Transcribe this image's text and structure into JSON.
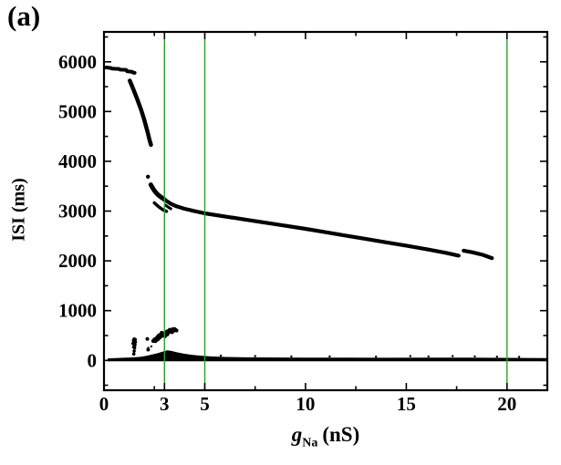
{
  "chart_data": {
    "type": "scatter",
    "title": "(a)",
    "xlabel": "g_Na (nS)",
    "xlabel_parts": {
      "symbol": "g",
      "subscript": "Na",
      "unit": "(nS)"
    },
    "ylabel": "ISI (ms)",
    "xlim": [
      0,
      22
    ],
    "ylim": [
      -600,
      6600
    ],
    "grid": false,
    "legend": false,
    "point_color": "#000000",
    "vline_color": "#2e9e2e",
    "vlines": [
      3,
      5,
      20
    ],
    "x_ticks_major": [
      0,
      3,
      5,
      10,
      15,
      20
    ],
    "x_ticks_minor": [
      2.5,
      7.5,
      12.5,
      17.5
    ],
    "y_ticks_major": [
      0,
      1000,
      2000,
      3000,
      4000,
      5000,
      6000
    ],
    "y_ticks_minor": [
      -500,
      500,
      1500,
      2500,
      3500,
      4500,
      5500,
      6500
    ],
    "series": [
      {
        "name": "upper-band",
        "type": "line",
        "width": 4,
        "points": [
          [
            0.1,
            5885
          ],
          [
            0.35,
            5875
          ],
          [
            0.4,
            5862
          ],
          [
            0.75,
            5856
          ],
          [
            0.8,
            5842
          ],
          [
            1.1,
            5838
          ],
          [
            1.15,
            5808
          ],
          [
            1.4,
            5798
          ],
          [
            1.45,
            5782
          ],
          [
            1.52,
            5778
          ]
        ]
      },
      {
        "name": "steep-branch",
        "type": "line",
        "width": 4.5,
        "points": [
          [
            1.28,
            5620
          ],
          [
            1.45,
            5455
          ],
          [
            1.65,
            5250
          ],
          [
            1.85,
            5025
          ],
          [
            2.0,
            4830
          ],
          [
            2.15,
            4610
          ],
          [
            2.26,
            4430
          ],
          [
            2.33,
            4330
          ]
        ]
      },
      {
        "name": "isolated-dot",
        "type": "scatter",
        "r": 2.2,
        "points": [
          [
            2.18,
            3690
          ]
        ]
      },
      {
        "name": "mid-cluster",
        "type": "line",
        "width": 5,
        "points": [
          [
            2.32,
            3530
          ],
          [
            2.42,
            3460
          ],
          [
            2.52,
            3400
          ],
          [
            2.64,
            3345
          ],
          [
            2.76,
            3300
          ],
          [
            2.9,
            3260
          ],
          [
            3.0,
            3232
          ]
        ]
      },
      {
        "name": "mid-fork",
        "type": "line",
        "width": 3.5,
        "points": [
          [
            2.5,
            3165
          ],
          [
            2.65,
            3110
          ],
          [
            2.8,
            3060
          ],
          [
            2.95,
            3020
          ],
          [
            3.1,
            2995
          ]
        ]
      },
      {
        "name": "mid-stub",
        "type": "line",
        "width": 3,
        "points": [
          [
            3.05,
            3120
          ],
          [
            3.2,
            3075
          ],
          [
            3.32,
            3048
          ]
        ]
      },
      {
        "name": "main-branch",
        "type": "line",
        "width": 4.2,
        "points": [
          [
            3.0,
            3230
          ],
          [
            3.3,
            3150
          ],
          [
            3.6,
            3095
          ],
          [
            4,
            3045
          ],
          [
            4.5,
            2998
          ],
          [
            5,
            2955
          ],
          [
            6,
            2892
          ],
          [
            7,
            2830
          ],
          [
            8,
            2768
          ],
          [
            9,
            2705
          ],
          [
            10,
            2642
          ],
          [
            11,
            2575
          ],
          [
            12,
            2508
          ],
          [
            13,
            2440
          ],
          [
            14,
            2372
          ],
          [
            15,
            2305
          ],
          [
            16,
            2235
          ],
          [
            17,
            2160
          ],
          [
            17.6,
            2105
          ]
        ]
      },
      {
        "name": "end-segment",
        "type": "line",
        "width": 4.2,
        "points": [
          [
            17.85,
            2205
          ],
          [
            18.3,
            2170
          ],
          [
            18.8,
            2120
          ],
          [
            19.25,
            2055
          ]
        ]
      },
      {
        "name": "low-band",
        "type": "band",
        "baseline": -20,
        "points": [
          [
            0.18,
            40
          ],
          [
            0.8,
            50
          ],
          [
            1.4,
            60
          ],
          [
            1.8,
            70
          ],
          [
            2.1,
            90
          ],
          [
            2.4,
            120
          ],
          [
            2.7,
            150
          ],
          [
            2.95,
            180
          ],
          [
            3.15,
            200
          ],
          [
            3.35,
            190
          ],
          [
            3.6,
            165
          ],
          [
            3.9,
            140
          ],
          [
            4.3,
            115
          ],
          [
            4.8,
            95
          ],
          [
            5.3,
            80
          ],
          [
            6,
            68
          ],
          [
            7,
            62
          ],
          [
            8,
            60
          ],
          [
            10,
            56
          ],
          [
            12,
            56
          ],
          [
            14,
            52
          ],
          [
            16,
            55
          ],
          [
            18,
            54
          ],
          [
            20,
            50
          ],
          [
            22,
            46
          ]
        ]
      },
      {
        "name": "low-cluster-blob",
        "type": "scatter",
        "r": 2.1,
        "points": [
          [
            2.44,
            390
          ],
          [
            2.5,
            420
          ],
          [
            2.55,
            385
          ],
          [
            2.6,
            445
          ],
          [
            2.62,
            410
          ],
          [
            2.66,
            475
          ],
          [
            2.7,
            430
          ],
          [
            2.73,
            505
          ],
          [
            2.78,
            465
          ],
          [
            2.83,
            525
          ],
          [
            2.86,
            555
          ],
          [
            2.87,
            490
          ],
          [
            2.92,
            545
          ],
          [
            2.96,
            515
          ],
          [
            3.0,
            535
          ],
          [
            3.03,
            485
          ],
          [
            3.07,
            560
          ],
          [
            3.12,
            580
          ],
          [
            3.14,
            520
          ],
          [
            3.17,
            545
          ],
          [
            3.21,
            595
          ],
          [
            3.26,
            615
          ],
          [
            3.3,
            575
          ],
          [
            3.35,
            605
          ],
          [
            3.38,
            565
          ],
          [
            3.4,
            625
          ],
          [
            3.46,
            595
          ],
          [
            3.5,
            630
          ],
          [
            3.55,
            615
          ],
          [
            3.6,
            600
          ]
        ]
      },
      {
        "name": "low-spike",
        "type": "scatter",
        "r": 1.8,
        "points": [
          [
            1.48,
            130
          ],
          [
            1.5,
            190
          ],
          [
            1.52,
            250
          ],
          [
            1.54,
            310
          ],
          [
            1.56,
            370
          ],
          [
            1.55,
            420
          ],
          [
            1.5,
            430
          ],
          [
            1.46,
            400
          ],
          [
            1.44,
            340
          ],
          [
            1.47,
            270
          ]
        ]
      },
      {
        "name": "stray-dots",
        "type": "scatter",
        "r": 2,
        "points": [
          [
            2.15,
            430
          ],
          [
            2.19,
            215
          ]
        ]
      },
      {
        "name": "band-specks",
        "type": "scatter",
        "r": 1.2,
        "points": [
          [
            2.2,
            250
          ],
          [
            2.35,
            280
          ],
          [
            5.8,
            95
          ],
          [
            7.5,
            85
          ],
          [
            9.3,
            80
          ],
          [
            11.2,
            78
          ],
          [
            13.5,
            75
          ],
          [
            15.2,
            85
          ],
          [
            16.1,
            80
          ],
          [
            17.3,
            85
          ],
          [
            18.4,
            80
          ],
          [
            19.5,
            75
          ],
          [
            20.6,
            70
          ]
        ]
      }
    ]
  }
}
